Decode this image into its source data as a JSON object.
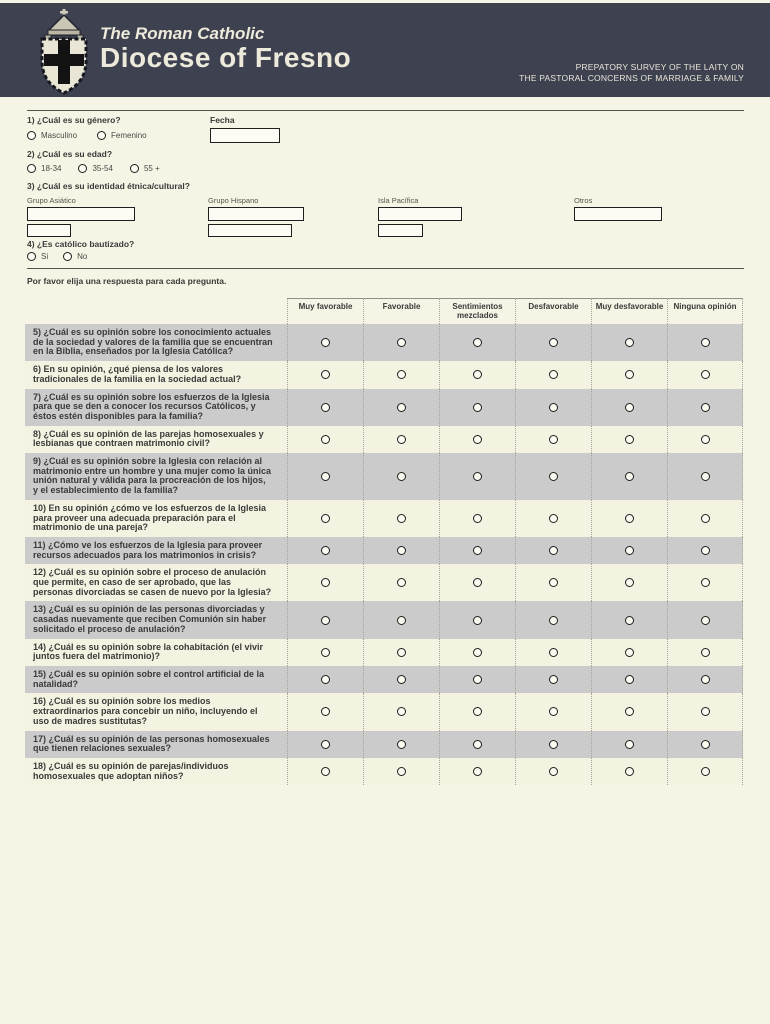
{
  "header": {
    "bg": "#3d4150",
    "brand_line1": "The Roman Catholic",
    "brand_line2": "Diocese of Fresno",
    "survey_line1": "PREPATORY SURVEY OF THE LAITY ON",
    "survey_line2": "THE PASTORAL CONCERNS OF MARRIAGE & FAMILY",
    "crest_icon": "diocese-crest"
  },
  "form": {
    "q1_label": "1) ¿Cuál es su género?",
    "q1_options": [
      "Masculino",
      "Femenino"
    ],
    "fecha_label": "Fecha",
    "fecha_value": "",
    "q2_label": "2) ¿Cuál es su edad?",
    "q2_options": [
      "18-34",
      "35-54",
      "55 +"
    ],
    "q3_label": "3) ¿Cuál es su identidad étnica/cultural?",
    "q3_groups": [
      {
        "label": "Grupo Asiático",
        "fields": [
          "",
          ""
        ]
      },
      {
        "label": "Grupo Hispano",
        "fields": [
          "",
          ""
        ]
      },
      {
        "label": "Isla Pacífica",
        "fields": [
          "",
          ""
        ]
      },
      {
        "label": "Otros",
        "fields": [
          ""
        ]
      }
    ],
    "q4_label": "4) ¿Es católico bautizado?",
    "q4_options": [
      "Si",
      "No"
    ],
    "instruction": "Por favor elija una respuesta para cada pregunta."
  },
  "survey": {
    "columns": [
      "Muy favorable",
      "Favorable",
      "Sentimientos mezclados",
      "Desfavorable",
      "Muy desfavorable",
      "Ninguna opinión"
    ],
    "row_colors": {
      "odd_question": "#cbcbcb",
      "even_question": "#f4f3e2"
    },
    "questions": [
      "5) ¿Cuál es su opinión sobre los conocimiento actuales de la sociedad y valores de la familia que se encuentran en la Biblia, enseñados por la Iglesia Católica?",
      "6) En su opinión, ¿qué piensa de los valores tradicionales de la familia en la sociedad actual?",
      "7) ¿Cuál es su opinión sobre los esfuerzos de la Iglesia para que se den a conocer los recursos Católicos, y éstos estén disponibles para la familia?",
      "8) ¿Cuál es su opinión de las parejas homosexuales y lesbianas que contraen matrimonio civil?",
      "9) ¿Cuál es su opinión sobre la Iglesia con relación al matrimonio entre un hombre y una mujer como la única unión natural y válida para la procreación de los hijos, y el establecimiento de la familia?",
      "10) En su opinión ¿cómo ve los esfuerzos de la Iglesia para proveer una adecuada preparación para el matrimonio de una pareja?",
      "11) ¿Cómo ve los esfuerzos de la Iglesia para proveer recursos adecuados para los matrimonios in crisis?",
      "12) ¿Cuál es su opinión sobre el proceso de anulación que permite, en caso de ser aprobado, que las personas divorciadas se casen de nuevo por la Iglesia?",
      "13) ¿Cuál es su opinión de las personas divorciadas y casadas nuevamente que reciben Comunión sin haber solicitado el proceso de anulación?",
      "14) ¿Cuál es su opinión sobre la cohabitación (el vivir juntos fuera del matrimonio)?",
      "15) ¿Cuál es su opinión sobre el control artificial de la natalidad?",
      "16) ¿Cuál es su opinión sobre los medios extraordinarios para concebir un niño, incluyendo el uso de madres sustitutas?",
      "17) ¿Cuál es su opinión de las personas homosexuales que tienen relaciones sexuales?",
      "18) ¿Cuál es su opinión de parejas/individuos homosexuales que adoptan niños?"
    ]
  }
}
